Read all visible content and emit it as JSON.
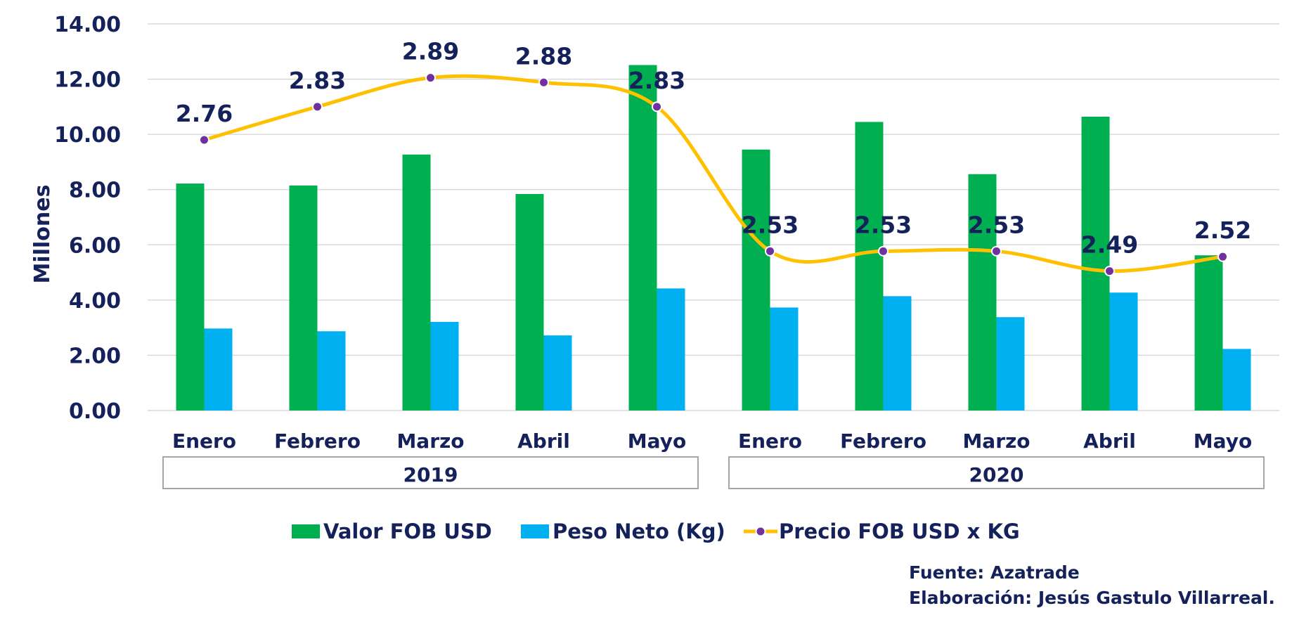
{
  "chart_data": {
    "type": "bar",
    "ylabel": "Millones",
    "ylim": [
      0,
      14
    ],
    "yticks": [
      "0.00",
      "2.00",
      "4.00",
      "6.00",
      "8.00",
      "10.00",
      "12.00",
      "14.00"
    ],
    "grid": true,
    "categories": [
      "Enero",
      "Febrero",
      "Marzo",
      "Abril",
      "Mayo",
      "Enero",
      "Febrero",
      "Marzo",
      "Abril",
      "Mayo"
    ],
    "groups": [
      {
        "label": "2019",
        "from": 0,
        "to": 4
      },
      {
        "label": "2020",
        "from": 5,
        "to": 9
      }
    ],
    "series": [
      {
        "name": "Valor FOB USD",
        "type": "bar",
        "color": "#00b050",
        "values": [
          8.22,
          8.15,
          9.27,
          7.84,
          12.51,
          9.45,
          10.45,
          8.56,
          10.64,
          5.62
        ]
      },
      {
        "name": "Peso Neto (Kg)",
        "type": "bar",
        "color": "#00b0f0",
        "values": [
          2.97,
          2.87,
          3.21,
          2.72,
          4.42,
          3.73,
          4.14,
          3.38,
          4.27,
          2.23
        ]
      },
      {
        "name": "Precio FOB USD x KG",
        "type": "line",
        "color": "#ffc000",
        "markerColor": "#7030a0",
        "values": [
          2.76,
          2.83,
          2.89,
          2.88,
          2.83,
          2.53,
          2.53,
          2.53,
          2.49,
          2.52
        ],
        "labels": [
          "2.76",
          "2.83",
          "2.89",
          "2.88",
          "2.83",
          "2.53",
          "2.53",
          "2.53",
          "2.49",
          "2.52"
        ],
        "plot_positions": [
          9.8,
          11.0,
          12.05,
          11.88,
          11.0,
          5.77,
          5.77,
          5.77,
          5.05,
          5.57
        ]
      }
    ],
    "legend_position": "bottom"
  },
  "footer": {
    "source": "Fuente: Azatrade",
    "author": "Elaboración: Jesús Gastulo Villarreal."
  }
}
